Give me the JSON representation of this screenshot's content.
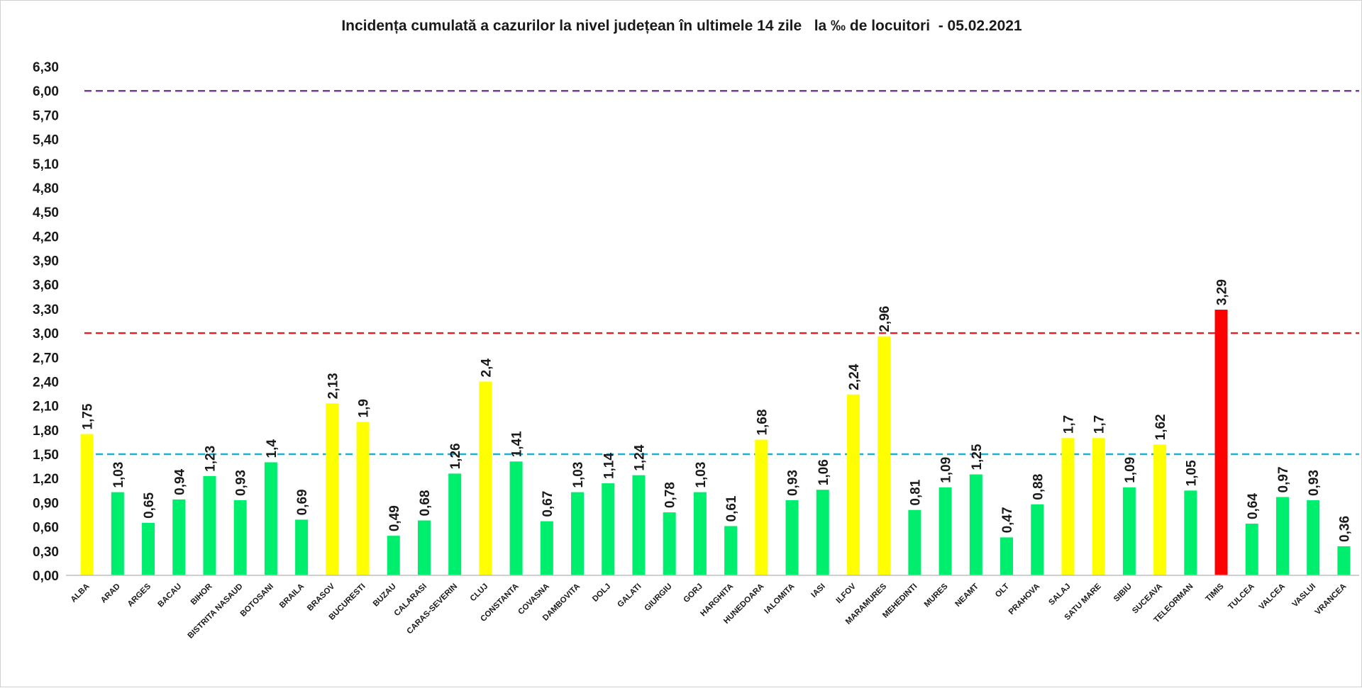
{
  "chart_data": {
    "type": "bar",
    "title": "Incidența cumulată a cazurilor la nivel județean în ultimele 14 zile   la ‰ de locuitori  - 05.02.2021",
    "xlabel": "",
    "ylabel": "",
    "ylim": [
      0,
      6.3
    ],
    "y_ticks": [
      "0,00",
      "0,30",
      "0,60",
      "0,90",
      "1,20",
      "1,50",
      "1,80",
      "2,10",
      "2,40",
      "2,70",
      "3,00",
      "3,30",
      "3,60",
      "3,90",
      "4,20",
      "4,50",
      "4,80",
      "5,10",
      "5,40",
      "5,70",
      "6,00",
      "6,30"
    ],
    "grid": false,
    "legend": "none",
    "categories": [
      "ALBA",
      "ARAD",
      "ARGES",
      "BACAU",
      "BIHOR",
      "BISTRITA NASAUD",
      "BOTOSANI",
      "BRAILA",
      "BRASOV",
      "BUCURESTI",
      "BUZAU",
      "CALARASI",
      "CARAS-SEVERIN",
      "CLUJ",
      "CONSTANTA",
      "COVASNA",
      "DAMBOVITA",
      "DOLJ",
      "GALATI",
      "GIURGIU",
      "GORJ",
      "HARGHITA",
      "HUNEDOARA",
      "IALOMITA",
      "IASI",
      "ILFOV",
      "MARAMURES",
      "MEHEDINTI",
      "MURES",
      "NEAMT",
      "OLT",
      "PRAHOVA",
      "SALAJ",
      "SATU MARE",
      "SIBIU",
      "SUCEAVA",
      "TELEORMAN",
      "TIMIS",
      "TULCEA",
      "VALCEA",
      "VASLUI",
      "VRANCEA"
    ],
    "values": [
      1.75,
      1.03,
      0.65,
      0.94,
      1.23,
      0.93,
      1.4,
      0.69,
      2.13,
      1.9,
      0.49,
      0.68,
      1.26,
      2.4,
      1.41,
      0.67,
      1.03,
      1.14,
      1.24,
      0.78,
      1.03,
      0.61,
      1.68,
      0.93,
      1.06,
      2.24,
      2.96,
      0.81,
      1.09,
      1.25,
      0.47,
      0.88,
      1.7,
      1.7,
      1.09,
      1.62,
      1.05,
      3.29,
      0.64,
      0.97,
      0.93,
      0.36
    ],
    "value_labels": [
      "1,75",
      "1,03",
      "0,65",
      "0,94",
      "1,23",
      "0,93",
      "1,4",
      "0,69",
      "2,13",
      "1,9",
      "0,49",
      "0,68",
      "1,26",
      "2,4",
      "1,41",
      "0,67",
      "1,03",
      "1,14",
      "1,24",
      "0,78",
      "1,03",
      "0,61",
      "1,68",
      "0,93",
      "1,06",
      "2,24",
      "2,96",
      "0,81",
      "1,09",
      "1,25",
      "0,47",
      "0,88",
      "1,7",
      "1,7",
      "1,09",
      "1,62",
      "1,05",
      "3,29",
      "0,64",
      "0,97",
      "0,93",
      "0,36"
    ],
    "thresholds": [
      {
        "value": 1.5,
        "color": "#1ab0d6"
      },
      {
        "value": 3.0,
        "color": "#e8202a"
      },
      {
        "value": 6.0,
        "color": "#7a3aa0"
      }
    ],
    "colors": {
      "low": "#00ee6e",
      "medium": "#ffff00",
      "high": "#ff0000"
    }
  }
}
